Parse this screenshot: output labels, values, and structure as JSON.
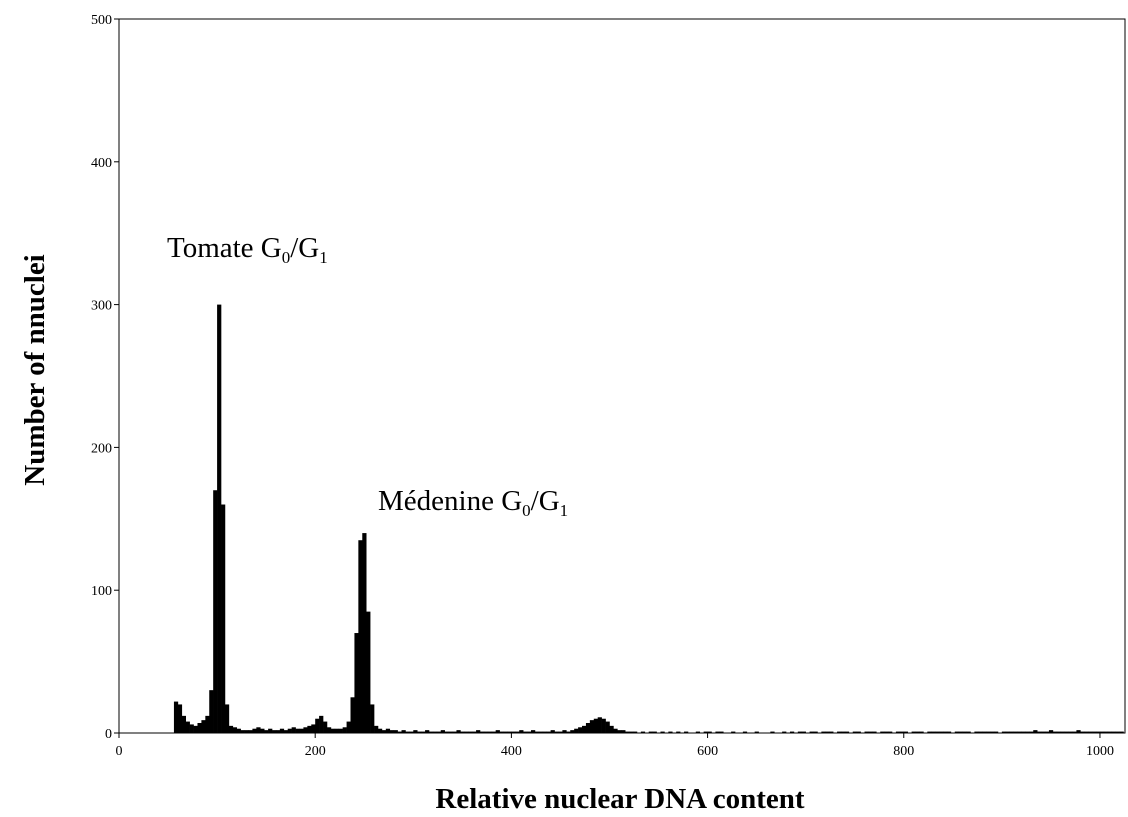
{
  "chart_data": {
    "type": "histogram",
    "xlabel": "Relative nuclear DNA content",
    "ylabel": "Number of nnuclei",
    "color": "#000000",
    "xlim": [
      0,
      1024
    ],
    "ylim": [
      0,
      500
    ],
    "xticks": [
      0,
      200,
      400,
      600,
      800,
      1000
    ],
    "yticks": [
      0,
      100,
      200,
      300,
      400,
      500
    ],
    "annotations": [
      {
        "parts": [
          "Tomate G",
          "0",
          "/G",
          "1"
        ]
      },
      {
        "parts": [
          "Médenine G",
          "0",
          "/G",
          "1"
        ]
      }
    ],
    "bins": [
      56,
      60,
      64,
      68,
      72,
      76,
      80,
      84,
      88,
      92,
      96,
      100,
      104,
      108,
      112,
      116,
      120,
      124,
      128,
      132,
      136,
      140,
      144,
      148,
      152,
      156,
      160,
      164,
      168,
      172,
      176,
      180,
      184,
      188,
      192,
      196,
      200,
      204,
      208,
      212,
      216,
      220,
      224,
      228,
      232,
      236,
      240,
      244,
      248,
      252,
      256,
      260,
      264,
      268,
      272,
      276,
      280,
      284,
      288,
      292,
      296,
      300,
      304,
      308,
      312,
      316,
      320,
      324,
      328,
      332,
      336,
      340,
      344,
      348,
      352,
      356,
      360,
      364,
      368,
      372,
      376,
      380,
      384,
      388,
      392,
      396,
      400,
      404,
      408,
      412,
      416,
      420,
      424,
      428,
      432,
      436,
      440,
      444,
      448,
      452,
      456,
      460,
      464,
      468,
      472,
      476,
      480,
      484,
      488,
      492,
      496,
      500,
      504,
      508,
      512,
      516,
      520,
      524,
      528,
      532,
      536,
      540,
      544,
      548,
      552,
      556,
      560,
      564,
      568,
      572,
      576,
      580,
      584,
      588,
      592,
      596,
      600,
      604,
      608,
      612,
      616,
      620,
      624,
      628,
      632,
      636,
      640,
      644,
      648,
      652,
      656,
      660,
      664,
      668,
      672,
      676,
      680,
      684,
      688,
      692,
      696,
      700,
      704,
      708,
      712,
      716,
      720,
      724,
      728,
      732,
      736,
      740,
      744,
      748,
      752,
      756,
      760,
      764,
      768,
      772,
      776,
      780,
      784,
      788,
      792,
      796,
      800,
      804,
      808,
      812,
      816,
      820,
      824,
      828,
      832,
      836,
      840,
      844,
      848,
      852,
      856,
      860,
      864,
      868,
      872,
      876,
      880,
      884,
      888,
      892,
      896,
      900,
      904,
      908,
      912,
      916,
      920,
      924,
      928,
      932,
      936,
      940,
      944,
      948,
      952,
      956,
      960,
      964,
      968,
      972,
      976,
      980,
      984,
      988,
      992,
      996,
      1000,
      1004,
      1008,
      1012,
      1016,
      1020,
      1024
    ],
    "counts": [
      22,
      20,
      12,
      8,
      6,
      5,
      7,
      9,
      12,
      30,
      170,
      300,
      160,
      20,
      5,
      4,
      3,
      2,
      2,
      2,
      3,
      4,
      3,
      2,
      3,
      2,
      2,
      3,
      2,
      3,
      4,
      3,
      3,
      4,
      5,
      6,
      10,
      12,
      8,
      4,
      3,
      3,
      3,
      4,
      8,
      25,
      70,
      135,
      140,
      85,
      20,
      5,
      3,
      2,
      3,
      2,
      2,
      1,
      2,
      1,
      1,
      2,
      1,
      1,
      2,
      1,
      1,
      1,
      2,
      1,
      1,
      1,
      2,
      1,
      1,
      1,
      1,
      2,
      1,
      1,
      1,
      1,
      2,
      1,
      1,
      1,
      1,
      1,
      2,
      1,
      1,
      2,
      1,
      1,
      1,
      1,
      2,
      1,
      1,
      2,
      1,
      2,
      3,
      4,
      5,
      7,
      9,
      10,
      11,
      10,
      8,
      5,
      3,
      2,
      2,
      1,
      1,
      1,
      0,
      1,
      0,
      1,
      1,
      0,
      1,
      0,
      1,
      0,
      1,
      0,
      1,
      0,
      0,
      1,
      0,
      1,
      1,
      0,
      1,
      1,
      0,
      0,
      1,
      0,
      0,
      1,
      0,
      0,
      1,
      0,
      0,
      0,
      1,
      0,
      0,
      1,
      0,
      1,
      0,
      1,
      1,
      0,
      1,
      1,
      0,
      1,
      1,
      1,
      0,
      1,
      1,
      1,
      0,
      1,
      1,
      0,
      1,
      1,
      1,
      0,
      1,
      1,
      1,
      0,
      1,
      1,
      1,
      0,
      1,
      1,
      1,
      0,
      1,
      1,
      1,
      1,
      1,
      1,
      0,
      1,
      1,
      1,
      1,
      0,
      1,
      1,
      1,
      1,
      1,
      1,
      0,
      1,
      1,
      1,
      1,
      1,
      1,
      1,
      1,
      2,
      1,
      1,
      1,
      2,
      1,
      1,
      1,
      1,
      1,
      1,
      2,
      1,
      1,
      1,
      1,
      1,
      1,
      1,
      1,
      1,
      1,
      1
    ]
  }
}
